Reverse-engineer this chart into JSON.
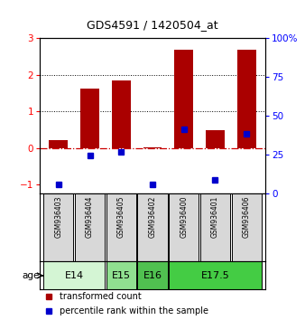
{
  "title": "GDS4591 / 1420504_at",
  "samples": [
    "GSM936403",
    "GSM936404",
    "GSM936405",
    "GSM936402",
    "GSM936400",
    "GSM936401",
    "GSM936406"
  ],
  "red_values": [
    0.2,
    1.62,
    1.85,
    0.02,
    2.7,
    0.48,
    2.7
  ],
  "blue_values_left": [
    -1.0,
    -0.2,
    -0.1,
    -1.0,
    0.52,
    -0.88,
    0.38
  ],
  "ages": [
    {
      "label": "E14",
      "samples": [
        "GSM936403",
        "GSM936404"
      ],
      "color": "#d4f5d4"
    },
    {
      "label": "E15",
      "samples": [
        "GSM936405"
      ],
      "color": "#90e090"
    },
    {
      "label": "E16",
      "samples": [
        "GSM936402"
      ],
      "color": "#50c050"
    },
    {
      "label": "E17.5",
      "samples": [
        "GSM936400",
        "GSM936401",
        "GSM936406"
      ],
      "color": "#44cc44"
    }
  ],
  "ylim_left": [
    -1.25,
    3.0
  ],
  "ylim_right": [
    0,
    100
  ],
  "yticks_left": [
    -1,
    0,
    1,
    2,
    3
  ],
  "yticks_right": [
    0,
    25,
    50,
    75,
    100
  ],
  "bar_color": "#aa0000",
  "dot_color": "#0000cc",
  "zero_line_color": "#cc0000",
  "legend_red": "transformed count",
  "legend_blue": "percentile rank within the sample",
  "sample_box_color": "#d8d8d8",
  "title_fontsize": 9
}
